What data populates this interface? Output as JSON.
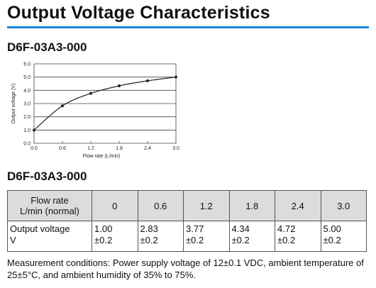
{
  "page_title": "Output Voltage Characteristics",
  "chart_heading": "D6F-03A3-000",
  "table_heading": "D6F-03A3-000",
  "accent_color": "#1d84d6",
  "chart_data": {
    "type": "line",
    "xlabel": "Flow rate (L/min)",
    "ylabel": "Output voltage (V)",
    "xlim": [
      0,
      3.0
    ],
    "ylim": [
      0,
      6.0
    ],
    "x_ticks": [
      "0.0",
      "0.6",
      "1.2",
      "1.8",
      "2.4",
      "3.0"
    ],
    "y_ticks": [
      "0.0",
      "1.0",
      "2.0",
      "3.0",
      "4.0",
      "5.0",
      "6.0"
    ],
    "grid": "horizontal",
    "x": [
      0,
      0.6,
      1.2,
      1.8,
      2.4,
      3.0
    ],
    "values": [
      1.0,
      2.83,
      3.77,
      4.34,
      4.72,
      5.0
    ]
  },
  "table": {
    "header_label_line1": "Flow rate",
    "header_label_line2": "L/min (normal)",
    "flow_rates": [
      "0",
      "0.6",
      "1.2",
      "1.8",
      "2.4",
      "3.0"
    ],
    "row_label_line1": "Output voltage",
    "row_label_line2": "V",
    "voltages": [
      "1.00",
      "2.83",
      "3.77",
      "4.34",
      "4.72",
      "5.00"
    ],
    "tolerance": "±0.2"
  },
  "note": "Measurement conditions: Power supply voltage of 12±0.1 VDC, ambient temperature of 25±5°C, and ambient humidity of 35% to 75%."
}
